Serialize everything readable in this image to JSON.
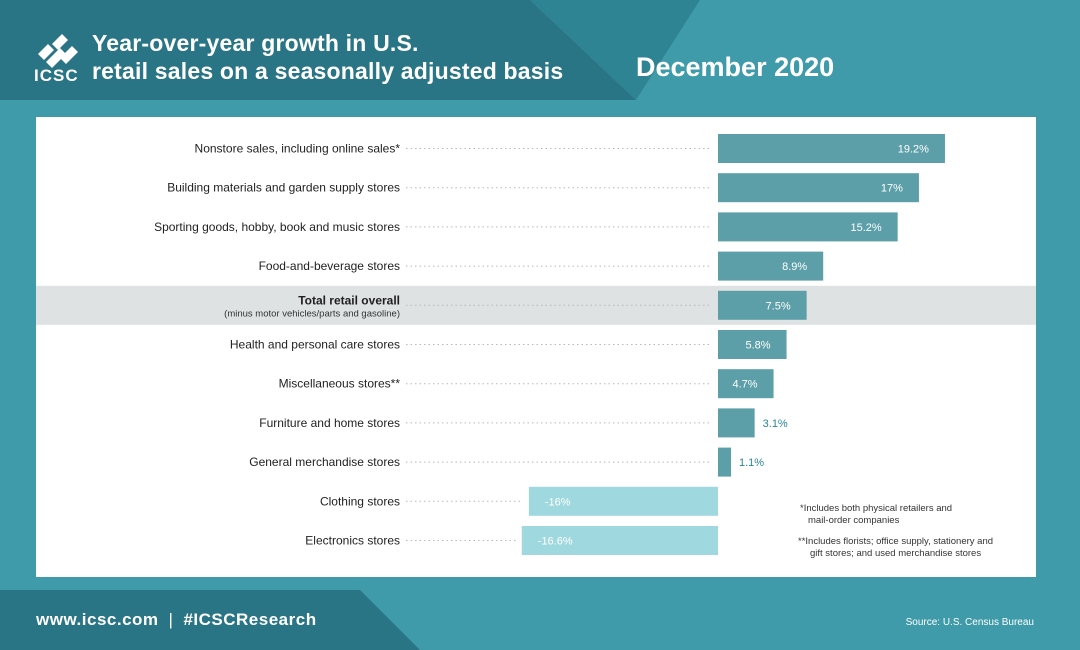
{
  "header": {
    "title_line1": "Year-over-year growth in U.S.",
    "title_line2": "retail sales on a seasonally adjusted basis",
    "date": "December 2020",
    "logo_text": "ICSC"
  },
  "colors": {
    "background": "#3f9aa9",
    "header_dark": "#2a7585",
    "header_mid": "#2f8494",
    "positive_bar": "#5c9fa8",
    "negative_bar": "#9fd8df",
    "highlight_row": "#dee2e3",
    "negative_label": "#ffffff",
    "small_value_label": "#2a8597"
  },
  "chart_data": {
    "type": "bar",
    "orientation": "horizontal",
    "categories": [
      "Nonstore sales, including online sales*",
      "Building materials and garden supply stores",
      "Sporting goods, hobby, book and music stores",
      "Food-and-beverage stores",
      "Total retail overall",
      "Health and personal care stores",
      "Miscellaneous stores**",
      "Furniture and home stores",
      "General merchandise stores",
      "Clothing stores",
      "Electronics stores"
    ],
    "category_sublabels": [
      "",
      "",
      "",
      "",
      "(minus motor vehicles/parts and gasoline)",
      "",
      "",
      "",
      "",
      "",
      ""
    ],
    "highlight_index": 4,
    "values": [
      19.2,
      17,
      15.2,
      8.9,
      7.5,
      5.8,
      4.7,
      3.1,
      1.1,
      -16,
      -16.6
    ],
    "value_labels": [
      "19.2%",
      "17%",
      "15.2%",
      "8.9%",
      "7.5%",
      "5.8%",
      "4.7%",
      "3.1%",
      "1.1%",
      "-16%",
      "-16.6%"
    ],
    "unit": "%",
    "grid": false,
    "legend": "none"
  },
  "notes": {
    "note1_line1": "*Includes both physical retailers and",
    "note1_line2": "mail-order companies",
    "note2_line1": "**Includes florists; office supply, stationery and",
    "note2_line2": "gift stores; and used merchandise stores"
  },
  "footer": {
    "website": "www.icsc.com",
    "separator": "|",
    "hashtag": "#ICSCResearch",
    "source": "Source: U.S. Census Bureau"
  }
}
